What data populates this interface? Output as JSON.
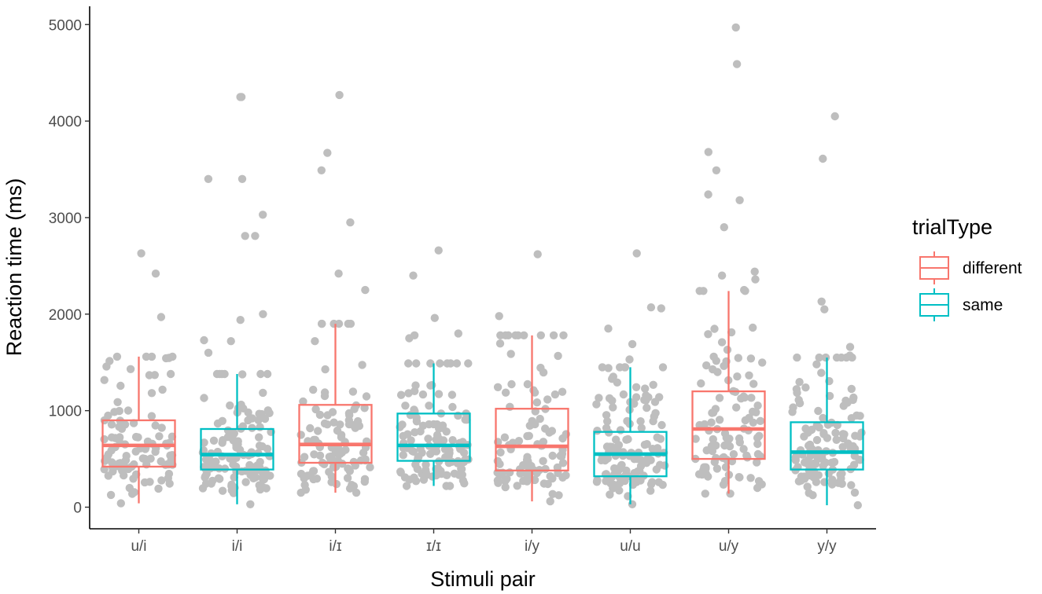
{
  "chart_data": {
    "type": "boxplot",
    "title": "",
    "xlabel": "Stimuli pair",
    "ylabel": "Reaction time (ms)",
    "ylim": [
      -250,
      5200
    ],
    "yticks": [
      0,
      1000,
      2000,
      3000,
      4000,
      5000
    ],
    "grid": false,
    "legend": {
      "title": "trialType",
      "position": "right",
      "entries": [
        {
          "name": "different",
          "color": "#F8766D"
        },
        {
          "name": "same",
          "color": "#00BFC4"
        }
      ]
    },
    "point_color": "#BEBEBE",
    "categories": [
      "u/i",
      "i/i",
      "i/ɪ",
      "ɪ/ɪ",
      "i/y",
      "u/u",
      "u/y",
      "y/y"
    ],
    "boxes": [
      {
        "category": "u/i",
        "trialType": "different",
        "whisker_low": 40,
        "q1": 420,
        "median": 640,
        "q3": 900,
        "whisker_high": 1560
      },
      {
        "category": "i/i",
        "trialType": "same",
        "whisker_low": 30,
        "q1": 390,
        "median": 545,
        "q3": 810,
        "whisker_high": 1380
      },
      {
        "category": "i/ɪ",
        "trialType": "different",
        "whisker_low": 150,
        "q1": 460,
        "median": 650,
        "q3": 1060,
        "whisker_high": 1900
      },
      {
        "category": "ɪ/ɪ",
        "trialType": "same",
        "whisker_low": 220,
        "q1": 480,
        "median": 640,
        "q3": 970,
        "whisker_high": 1490
      },
      {
        "category": "i/y",
        "trialType": "different",
        "whisker_low": 60,
        "q1": 380,
        "median": 630,
        "q3": 1020,
        "whisker_high": 1780
      },
      {
        "category": "u/u",
        "trialType": "same",
        "whisker_low": 30,
        "q1": 320,
        "median": 550,
        "q3": 780,
        "whisker_high": 1450
      },
      {
        "category": "u/y",
        "trialType": "different",
        "whisker_low": 140,
        "q1": 500,
        "median": 810,
        "q3": 1200,
        "whisker_high": 2240
      },
      {
        "category": "y/y",
        "trialType": "same",
        "whisker_low": 20,
        "q1": 390,
        "median": 570,
        "q3": 880,
        "whisker_high": 1550
      }
    ],
    "outliers": [
      {
        "category": "u/i",
        "values": [
          2630,
          2420,
          1970
        ]
      },
      {
        "category": "i/i",
        "values": [
          4250,
          4250,
          3400,
          3400,
          3030,
          2810,
          2810,
          2000,
          1940,
          1730,
          1720,
          1600
        ]
      },
      {
        "category": "i/ɪ",
        "values": [
          4270,
          3670,
          3490,
          2950,
          2420,
          2250
        ]
      },
      {
        "category": "ɪ/ɪ",
        "values": [
          2660,
          2400,
          1960,
          1800,
          1780,
          1750
        ]
      },
      {
        "category": "i/y",
        "values": [
          2620,
          1980
        ]
      },
      {
        "category": "u/u",
        "values": [
          2630,
          2070,
          2060,
          1850,
          1690,
          1530
        ]
      },
      {
        "category": "u/y",
        "values": [
          4970,
          4590,
          3680,
          3490,
          3240,
          3180,
          2900,
          2440,
          2400,
          2360,
          2250
        ]
      },
      {
        "category": "y/y",
        "values": [
          4050,
          3610,
          2130,
          2050,
          1660,
          1570
        ]
      }
    ]
  }
}
